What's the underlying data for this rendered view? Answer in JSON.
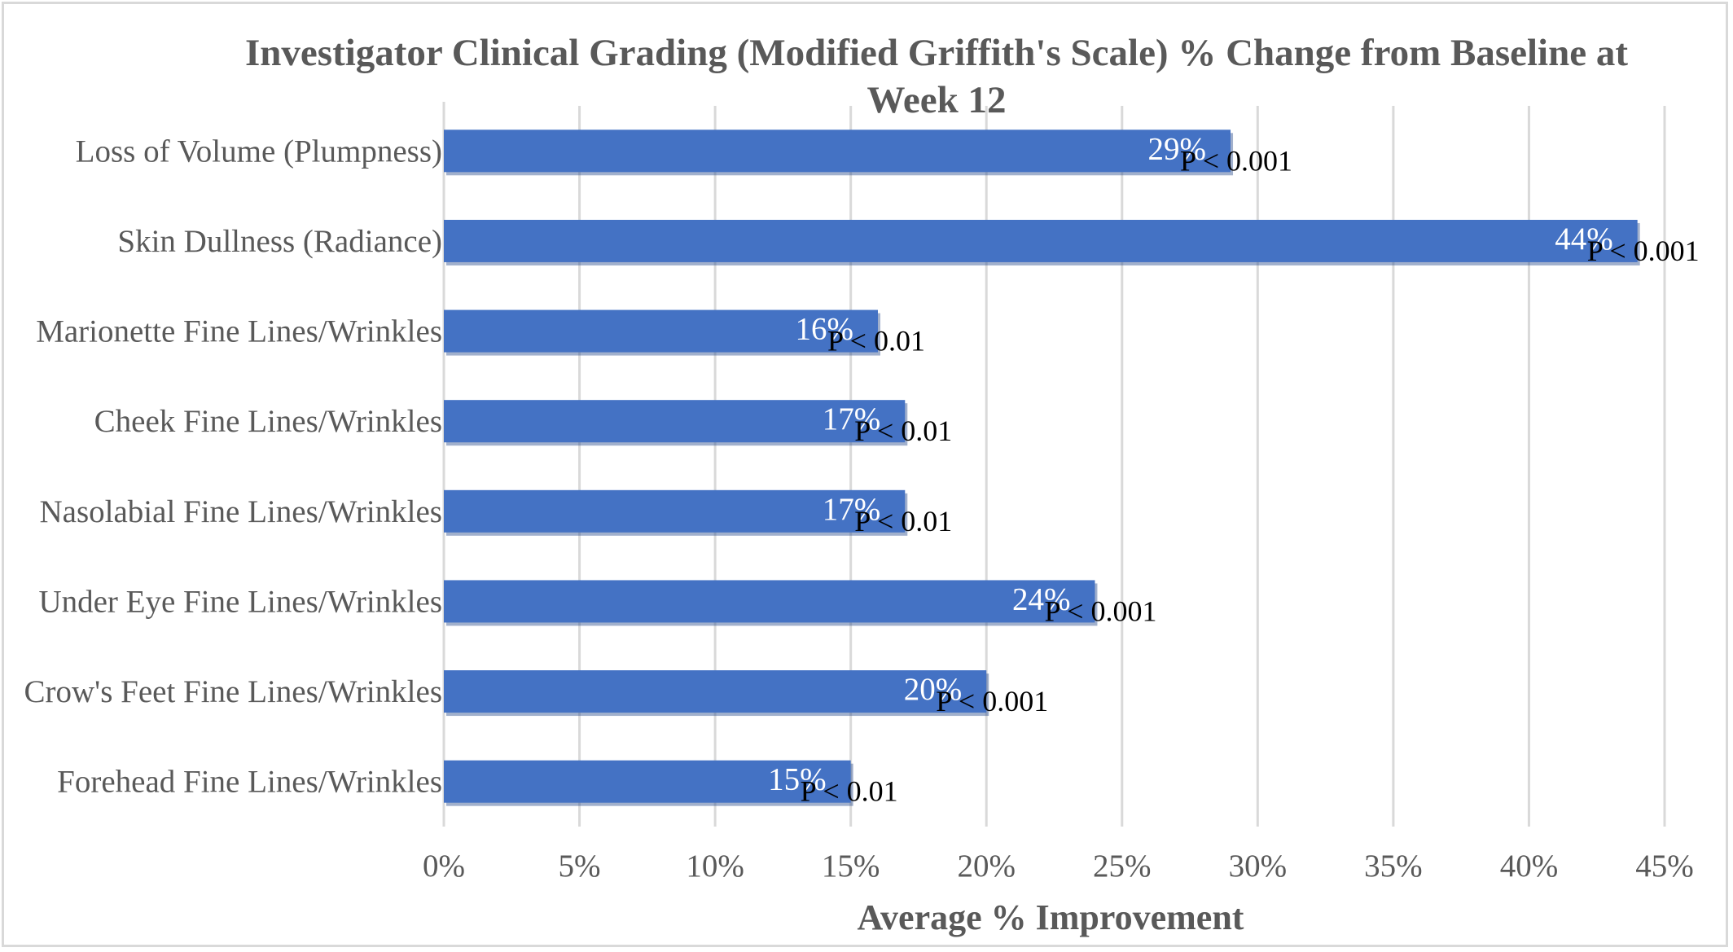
{
  "chart_data": {
    "type": "bar",
    "orientation": "horizontal",
    "title": "Investigator Clinical Grading (Modified Griffith's Scale) % Change from Baseline at Week 12",
    "xlabel": "Average % Improvement",
    "ylabel": "",
    "xlim": [
      0,
      45
    ],
    "x_ticks": [
      "0%",
      "5%",
      "10%",
      "15%",
      "20%",
      "25%",
      "30%",
      "35%",
      "40%",
      "45%"
    ],
    "categories": [
      "Loss of Volume (Plumpness)",
      "Skin Dullness (Radiance)",
      "Marionette Fine Lines/Wrinkles",
      "Cheek Fine Lines/Wrinkles",
      "Nasolabial Fine Lines/Wrinkles",
      "Under Eye Fine Lines/Wrinkles",
      "Crow's Feet Fine Lines/Wrinkles",
      "Forehead Fine Lines/Wrinkles"
    ],
    "values": [
      29,
      44,
      16,
      17,
      17,
      24,
      20,
      15
    ],
    "value_labels": [
      "29%",
      "44%",
      "16%",
      "17%",
      "17%",
      "24%",
      "20%",
      "15%"
    ],
    "p_values": [
      "P < 0.001",
      "P < 0.001",
      "P < 0.01",
      "P < 0.01",
      "P < 0.01",
      "P < 0.001",
      "P < 0.001",
      "P < 0.01"
    ],
    "bar_color": "#4472c4",
    "gridlines": true,
    "legend": "none"
  }
}
